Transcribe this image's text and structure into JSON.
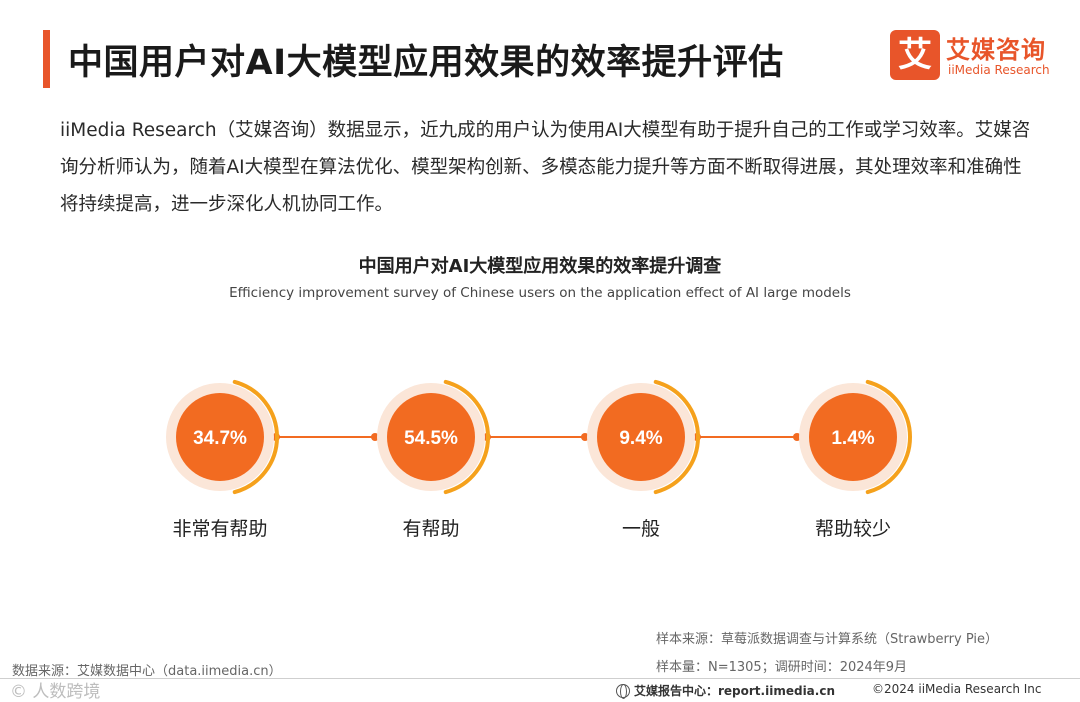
{
  "header": {
    "title": "中国用户对AI大模型应用效果的效率提升评估",
    "logo_mark": "艾",
    "logo_cn": "艾媒咨询",
    "logo_en": "iiMedia Research"
  },
  "intro": "iiMedia Research（艾媒咨询）数据显示，近九成的用户认为使用AI大模型有助于提升自己的工作或学习效率。艾媒咨询分析师认为，随着AI大模型在算法优化、模型架构创新、多模态能力提升等方面不断取得进展，其处理效率和准确性将持续提高，进一步深化人机协同工作。",
  "chart_data": {
    "type": "bubble",
    "title": "中国用户对AI大模型应用效果的效率提升调查",
    "subtitle": "Efficiency improvement survey of Chinese users on the application effect of AI large models",
    "categories": [
      "非常有帮助",
      "有帮助",
      "一般",
      "帮助较少"
    ],
    "values": [
      34.7,
      54.5,
      9.4,
      1.4
    ],
    "value_labels": [
      "34.7%",
      "54.5%",
      "9.4%",
      "1.4%"
    ],
    "unit": "%",
    "colors": {
      "circle": "#f26b21",
      "ring": "#fbe6d8",
      "arc": "#f5a11c",
      "connector": "#f26b21",
      "label": "#ffffff"
    }
  },
  "notes": {
    "source_sample": "样本来源：草莓派数据调查与计算系统（Strawberry Pie）",
    "sample_size": "样本量：N=1305；调研时间：2024年9月",
    "data_source": "数据来源：艾媒数据中心（data.iimedia.cn）"
  },
  "footer": {
    "watermark": "© 人数跨境",
    "report_center": "艾媒报告中心：report.iimedia.cn",
    "copyright": "©2024 iiMedia Research Inc"
  }
}
